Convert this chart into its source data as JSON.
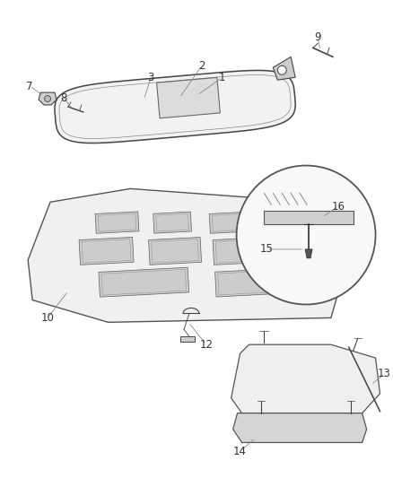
{
  "bg_color": "#ffffff",
  "lc": "#444444",
  "lc_light": "#888888",
  "font_size": 8.5,
  "label_color": "#333333"
}
